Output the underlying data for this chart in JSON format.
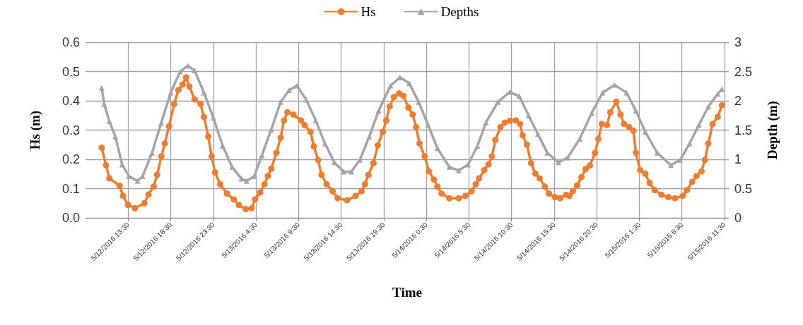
{
  "chart_data": {
    "type": "line",
    "xlabel": "Time",
    "ylabel": "Hs (m)",
    "y2label": "Depth (m)",
    "legend": "top",
    "grid": true,
    "line_style": "solid",
    "xlim": [
      "2016-05-12T08:30",
      "2016-05-15T12:00"
    ],
    "xticks": [
      {
        "value": "2016-05-12T13:30",
        "label": "5/12/2016 13:30"
      },
      {
        "value": "2016-05-12T18:30",
        "label": "5/12/2016 18:30"
      },
      {
        "value": "2016-05-12T23:30",
        "label": "5/12/2016 23:30"
      },
      {
        "value": "2016-05-13T04:30",
        "label": "5/13/2016 4:30"
      },
      {
        "value": "2016-05-13T09:30",
        "label": "5/13/2016 9:30"
      },
      {
        "value": "2016-05-13T14:30",
        "label": "5/13/2016 14:30"
      },
      {
        "value": "2016-05-13T19:30",
        "label": "5/13/2016 19:30"
      },
      {
        "value": "2016-05-14T00:30",
        "label": "5/14/2016 0:30"
      },
      {
        "value": "2016-05-14T05:30",
        "label": "5/14/2016 5:30"
      },
      {
        "value": "2016-05-14T10:30",
        "label": "5/14/2016 10:30"
      },
      {
        "value": "2016-05-14T15:30",
        "label": "5/14/2016 15:30"
      },
      {
        "value": "2016-05-14T20:30",
        "label": "5/14/2016 20:30"
      },
      {
        "value": "2016-05-15T01:30",
        "label": "5/15/2016 1:30"
      },
      {
        "value": "2016-05-15T06:30",
        "label": "5/15/2016 6:30"
      },
      {
        "value": "2016-05-15T11:30",
        "label": "5/15/2016 11:30"
      }
    ],
    "ylim": [
      0,
      0.6
    ],
    "yticks": [
      {
        "value": 0,
        "label": "0.0"
      },
      {
        "value": 0.1,
        "label": "0.1"
      },
      {
        "value": 0.2,
        "label": "0.2"
      },
      {
        "value": 0.3,
        "label": "0.3"
      },
      {
        "value": 0.4,
        "label": "0.4"
      },
      {
        "value": 0.5,
        "label": "0.5"
      },
      {
        "value": 0.6,
        "label": "0.6"
      }
    ],
    "y2lim": [
      0,
      3
    ],
    "y2ticks": [
      0,
      0.5,
      1,
      1.5,
      2,
      2.5,
      3
    ],
    "series": [
      {
        "name": "Hs",
        "color": "#ed7d31",
        "marker": "circle",
        "x": [
          "2016-05-12T10:24",
          "2016-05-12T10:54",
          "2016-05-12T11:18",
          "2016-05-12T12:30",
          "2016-05-12T12:54",
          "2016-05-12T13:30",
          "2016-05-12T14:18",
          "2016-05-12T15:24",
          "2016-05-12T15:54",
          "2016-05-12T16:30",
          "2016-05-12T16:54",
          "2016-05-12T17:24",
          "2016-05-12T17:48",
          "2016-05-12T18:18",
          "2016-05-12T18:54",
          "2016-05-12T19:24",
          "2016-05-12T19:54",
          "2016-05-12T20:18",
          "2016-05-12T20:42",
          "2016-05-12T21:18",
          "2016-05-12T22:00",
          "2016-05-12T22:24",
          "2016-05-12T22:54",
          "2016-05-12T23:18",
          "2016-05-12T23:42",
          "2016-05-13T00:18",
          "2016-05-13T01:06",
          "2016-05-13T01:54",
          "2016-05-13T02:30",
          "2016-05-13T03:18",
          "2016-05-13T04:00",
          "2016-05-13T04:24",
          "2016-05-13T05:00",
          "2016-05-13T05:30",
          "2016-05-13T05:54",
          "2016-05-13T06:18",
          "2016-05-13T06:54",
          "2016-05-13T07:24",
          "2016-05-13T07:48",
          "2016-05-13T08:12",
          "2016-05-13T08:54",
          "2016-05-13T09:48",
          "2016-05-13T10:12",
          "2016-05-13T10:54",
          "2016-05-13T11:18",
          "2016-05-13T11:48",
          "2016-05-13T12:12",
          "2016-05-13T12:48",
          "2016-05-13T13:30",
          "2016-05-13T14:06",
          "2016-05-13T15:12",
          "2016-05-13T16:12",
          "2016-05-13T16:54",
          "2016-05-13T17:18",
          "2016-05-13T17:42",
          "2016-05-13T18:18",
          "2016-05-13T18:48",
          "2016-05-13T19:24",
          "2016-05-13T19:48",
          "2016-05-13T20:12",
          "2016-05-13T20:42",
          "2016-05-13T21:18",
          "2016-05-13T21:48",
          "2016-05-13T22:24",
          "2016-05-13T22:54",
          "2016-05-13T23:18",
          "2016-05-13T23:42",
          "2016-05-14T00:18",
          "2016-05-14T00:48",
          "2016-05-14T01:24",
          "2016-05-14T01:48",
          "2016-05-14T02:18",
          "2016-05-14T03:12",
          "2016-05-14T04:18",
          "2016-05-14T05:06",
          "2016-05-14T05:48",
          "2016-05-14T06:18",
          "2016-05-14T06:42",
          "2016-05-14T07:18",
          "2016-05-14T07:48",
          "2016-05-14T08:12",
          "2016-05-14T08:36",
          "2016-05-14T09:12",
          "2016-05-14T09:42",
          "2016-05-14T10:18",
          "2016-05-14T11:00",
          "2016-05-14T11:30",
          "2016-05-14T11:48",
          "2016-05-14T12:18",
          "2016-05-14T12:48",
          "2016-05-14T13:18",
          "2016-05-14T13:48",
          "2016-05-14T14:24",
          "2016-05-14T14:54",
          "2016-05-14T15:36",
          "2016-05-14T16:12",
          "2016-05-14T16:54",
          "2016-05-14T17:18",
          "2016-05-14T17:42",
          "2016-05-14T18:12",
          "2016-05-14T18:42",
          "2016-05-14T19:12",
          "2016-05-14T19:42",
          "2016-05-14T20:18",
          "2016-05-14T20:42",
          "2016-05-14T21:06",
          "2016-05-14T21:42",
          "2016-05-14T22:06",
          "2016-05-14T22:48",
          "2016-05-14T23:18",
          "2016-05-14T23:42",
          "2016-05-15T00:18",
          "2016-05-15T00:48",
          "2016-05-15T01:06",
          "2016-05-15T01:36",
          "2016-05-15T02:12",
          "2016-05-15T02:42",
          "2016-05-15T03:18",
          "2016-05-15T04:06",
          "2016-05-15T04:54",
          "2016-05-15T05:42",
          "2016-05-15T06:36",
          "2016-05-15T07:06",
          "2016-05-15T07:42",
          "2016-05-15T08:12",
          "2016-05-15T08:48",
          "2016-05-15T09:12",
          "2016-05-15T09:36",
          "2016-05-15T10:06",
          "2016-05-15T10:42",
          "2016-05-15T11:12"
        ],
        "values": [
          0.24,
          0.18,
          0.135,
          0.11,
          0.075,
          0.044,
          0.033,
          0.05,
          0.08,
          0.107,
          0.147,
          0.21,
          0.254,
          0.313,
          0.389,
          0.437,
          0.456,
          0.48,
          0.448,
          0.405,
          0.389,
          0.345,
          0.278,
          0.21,
          0.155,
          0.115,
          0.083,
          0.063,
          0.044,
          0.03,
          0.033,
          0.063,
          0.087,
          0.115,
          0.143,
          0.168,
          0.222,
          0.274,
          0.333,
          0.361,
          0.353,
          0.333,
          0.317,
          0.294,
          0.244,
          0.198,
          0.147,
          0.115,
          0.091,
          0.067,
          0.06,
          0.075,
          0.091,
          0.115,
          0.147,
          0.187,
          0.248,
          0.294,
          0.333,
          0.381,
          0.413,
          0.425,
          0.417,
          0.377,
          0.353,
          0.31,
          0.254,
          0.21,
          0.159,
          0.131,
          0.107,
          0.083,
          0.067,
          0.067,
          0.075,
          0.091,
          0.115,
          0.135,
          0.163,
          0.183,
          0.21,
          0.266,
          0.31,
          0.325,
          0.332,
          0.333,
          0.321,
          0.282,
          0.25,
          0.187,
          0.151,
          0.135,
          0.107,
          0.083,
          0.071,
          0.067,
          0.079,
          0.075,
          0.091,
          0.111,
          0.139,
          0.167,
          0.179,
          0.222,
          0.27,
          0.321,
          0.317,
          0.361,
          0.397,
          0.353,
          0.321,
          0.31,
          0.298,
          0.222,
          0.163,
          0.151,
          0.119,
          0.095,
          0.079,
          0.071,
          0.067,
          0.075,
          0.095,
          0.123,
          0.143,
          0.159,
          0.198,
          0.254,
          0.321,
          0.345,
          0.385
        ]
      },
      {
        "name": "Depths",
        "color": "#a5a5a5",
        "marker": "triangle",
        "axis": "y2",
        "x": [
          "2016-05-12T10:24",
          "2016-05-12T10:42",
          "2016-05-12T11:18",
          "2016-05-12T12:00",
          "2016-05-12T12:48",
          "2016-05-12T13:36",
          "2016-05-12T14:36",
          "2016-05-12T15:12",
          "2016-05-12T16:18",
          "2016-05-12T17:24",
          "2016-05-12T18:30",
          "2016-05-12T19:36",
          "2016-05-12T20:30",
          "2016-05-12T21:18",
          "2016-05-12T22:24",
          "2016-05-12T23:30",
          "2016-05-13T00:36",
          "2016-05-13T01:42",
          "2016-05-13T02:48",
          "2016-05-13T03:24",
          "2016-05-13T04:18",
          "2016-05-13T05:12",
          "2016-05-13T06:18",
          "2016-05-13T07:24",
          "2016-05-13T08:24",
          "2016-05-13T09:18",
          "2016-05-13T10:24",
          "2016-05-13T11:30",
          "2016-05-13T12:36",
          "2016-05-13T13:42",
          "2016-05-13T14:48",
          "2016-05-13T15:42",
          "2016-05-13T16:42",
          "2016-05-13T17:48",
          "2016-05-13T18:54",
          "2016-05-13T20:18",
          "2016-05-13T21:24",
          "2016-05-13T22:30",
          "2016-05-13T23:36",
          "2016-05-14T00:42",
          "2016-05-14T01:48",
          "2016-05-14T03:12",
          "2016-05-14T04:18",
          "2016-05-14T05:24",
          "2016-05-14T06:30",
          "2016-05-14T07:30",
          "2016-05-14T08:54",
          "2016-05-14T10:18",
          "2016-05-14T11:24",
          "2016-05-14T12:30",
          "2016-05-14T13:36",
          "2016-05-14T14:42",
          "2016-05-14T16:00",
          "2016-05-14T17:06",
          "2016-05-14T18:30",
          "2016-05-14T19:54",
          "2016-05-14T21:12",
          "2016-05-14T22:36",
          "2016-05-15T00:00",
          "2016-05-15T01:06",
          "2016-05-15T02:12",
          "2016-05-15T03:36",
          "2016-05-15T05:12",
          "2016-05-15T06:18",
          "2016-05-15T07:24",
          "2016-05-15T08:30",
          "2016-05-15T09:36",
          "2016-05-15T10:42",
          "2016-05-15T11:12"
        ],
        "values": [
          2.22,
          1.94,
          1.65,
          1.39,
          0.91,
          0.71,
          0.63,
          0.71,
          1.11,
          1.63,
          2.14,
          2.5,
          2.6,
          2.52,
          2.14,
          1.71,
          1.23,
          0.87,
          0.67,
          0.63,
          0.71,
          1.07,
          1.51,
          1.98,
          2.18,
          2.26,
          2.02,
          1.67,
          1.27,
          0.95,
          0.79,
          0.79,
          0.99,
          1.39,
          1.83,
          2.26,
          2.4,
          2.3,
          1.98,
          1.59,
          1.19,
          0.87,
          0.81,
          0.91,
          1.23,
          1.63,
          1.98,
          2.15,
          2.08,
          1.75,
          1.43,
          1.11,
          0.95,
          1.03,
          1.35,
          1.79,
          2.14,
          2.27,
          2.14,
          1.83,
          1.47,
          1.11,
          0.9,
          0.99,
          1.27,
          1.59,
          1.9,
          2.12,
          2.2
        ]
      }
    ]
  }
}
